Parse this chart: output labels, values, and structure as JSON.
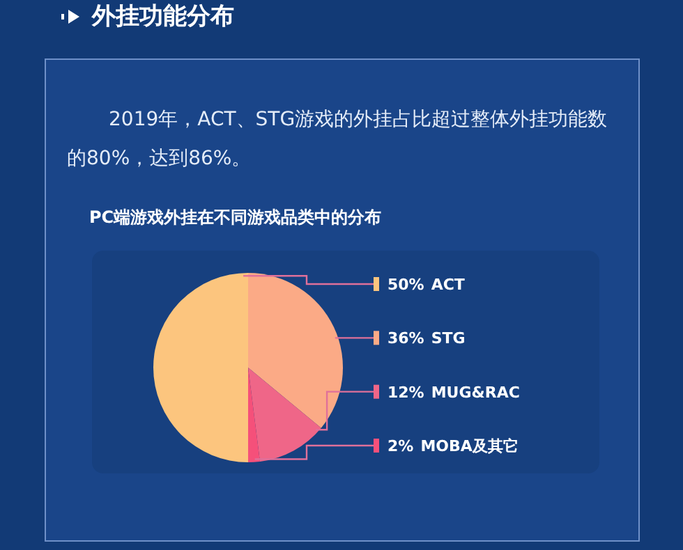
{
  "chart_data": {
    "type": "pie",
    "title": "外挂功能分布",
    "annotations": [
      "2019年，ACT、STG游戏的外挂占比超过整体外挂功能数的80%，达到86%。"
    ],
    "subtitle": "PC端游戏外挂在不同游戏品类中的分布",
    "categories": [
      "ACT",
      "STG",
      "MUG&RAC",
      "MOBA及其它"
    ],
    "values": [
      50,
      36,
      12,
      2
    ],
    "value_labels": [
      "50%",
      "36%",
      "12%",
      "2%"
    ],
    "colors": [
      "#fcc57e",
      "#fbaa86",
      "#ef6688",
      "#f5507a"
    ]
  }
}
